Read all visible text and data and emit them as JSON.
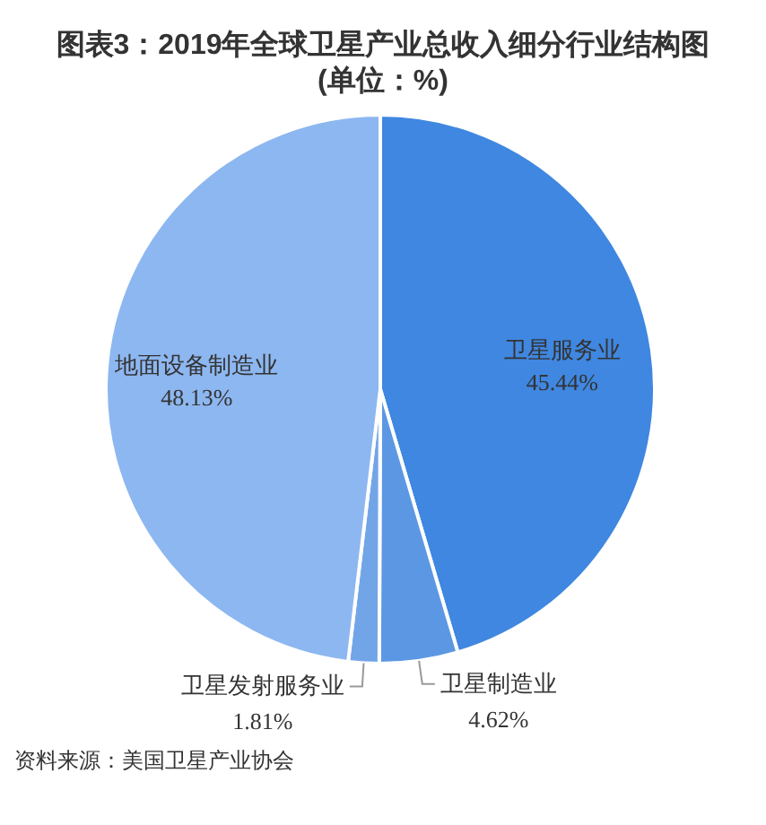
{
  "chart_data": {
    "type": "pie",
    "title": "图表3：2019年全球卫星产业总收入细分行业结构图",
    "subtitle": "(单位：%)",
    "categories": [
      "卫星服务业",
      "卫星制造业",
      "卫星发射服务业",
      "地面设备制造业"
    ],
    "values": [
      45.44,
      4.62,
      1.81,
      48.13
    ],
    "colors": [
      "#3f87e0",
      "#5c97e3",
      "#72a5e8",
      "#8db7f0"
    ],
    "value_labels": [
      "45.44%",
      "4.62%",
      "1.81%",
      "48.13%"
    ],
    "annotations": [
      "资料来源：美国卫星产业协会"
    ]
  }
}
